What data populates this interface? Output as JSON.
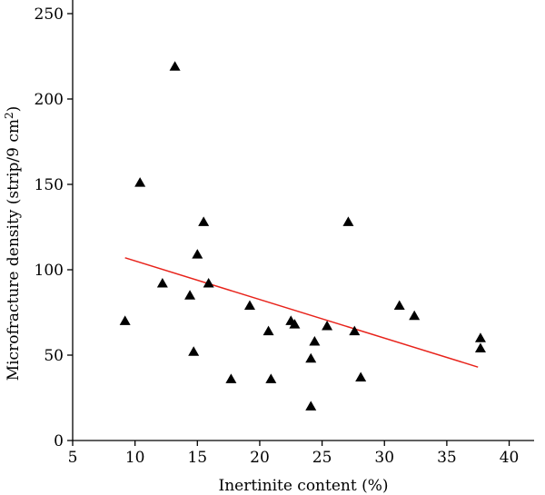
{
  "chart_data": {
    "type": "scatter",
    "title": "",
    "xlabel": "Inertinite content (%)",
    "ylabel_main": "Microfracture density (strip/9 cm",
    "ylabel_sup": "2",
    "ylabel_close": ")",
    "xlim": [
      5,
      42
    ],
    "ylim": [
      0,
      250
    ],
    "xticks": [
      5,
      10,
      15,
      20,
      25,
      30,
      35,
      40
    ],
    "yticks": [
      0,
      50,
      100,
      150,
      200,
      250
    ],
    "marker": "triangle",
    "marker_color": "#000000",
    "trendline_color": "#e8231b",
    "grid": false,
    "series": [
      {
        "points": [
          {
            "x": 9.2,
            "y": 70
          },
          {
            "x": 10.4,
            "y": 151
          },
          {
            "x": 12.2,
            "y": 92
          },
          {
            "x": 13.2,
            "y": 219
          },
          {
            "x": 14.4,
            "y": 85
          },
          {
            "x": 14.7,
            "y": 52
          },
          {
            "x": 15.0,
            "y": 109
          },
          {
            "x": 15.5,
            "y": 128
          },
          {
            "x": 15.9,
            "y": 92
          },
          {
            "x": 17.7,
            "y": 36
          },
          {
            "x": 19.2,
            "y": 79
          },
          {
            "x": 20.7,
            "y": 64
          },
          {
            "x": 20.9,
            "y": 36
          },
          {
            "x": 22.5,
            "y": 70
          },
          {
            "x": 22.8,
            "y": 68
          },
          {
            "x": 24.1,
            "y": 48
          },
          {
            "x": 24.1,
            "y": 20
          },
          {
            "x": 24.4,
            "y": 58
          },
          {
            "x": 25.4,
            "y": 67
          },
          {
            "x": 27.1,
            "y": 128
          },
          {
            "x": 27.6,
            "y": 64
          },
          {
            "x": 28.1,
            "y": 37
          },
          {
            "x": 31.2,
            "y": 79
          },
          {
            "x": 32.4,
            "y": 73
          },
          {
            "x": 37.7,
            "y": 60
          },
          {
            "x": 37.7,
            "y": 54
          }
        ]
      }
    ],
    "trendline": {
      "x": [
        9.2,
        37.5
      ],
      "y": [
        107,
        43
      ]
    }
  }
}
